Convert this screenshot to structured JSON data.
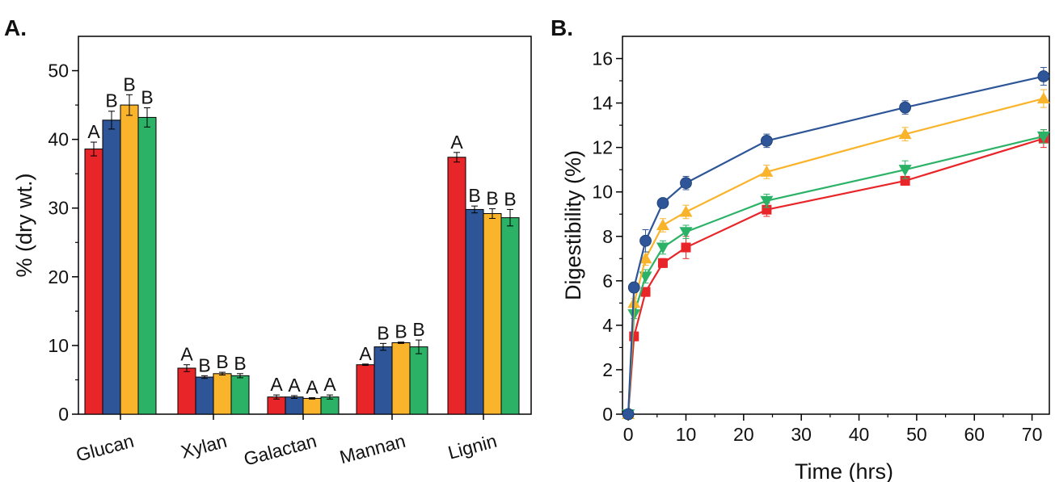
{
  "panels": {
    "a_label": "A.",
    "b_label": "B."
  },
  "colors": [
    "#e8262a",
    "#2d5597",
    "#f9b42c",
    "#2bb267"
  ],
  "chart_data": [
    {
      "type": "bar",
      "title": "",
      "ylabel": "% (dry wt.)",
      "xlabel": "",
      "ylim": [
        0,
        55
      ],
      "yticks": [
        0,
        10,
        20,
        30,
        40,
        50
      ],
      "categories": [
        "Glucan",
        "Xylan",
        "Galactan",
        "Mannan",
        "Lignin"
      ],
      "series": [
        {
          "color": "#e8262a",
          "values": [
            38.6,
            6.7,
            2.5,
            7.2,
            37.4
          ],
          "errors": [
            1.0,
            0.5,
            0.3,
            0.1,
            0.7
          ],
          "letters": [
            "A",
            "A",
            "A",
            "A",
            "A"
          ]
        },
        {
          "color": "#2d5597",
          "values": [
            42.8,
            5.4,
            2.5,
            9.8,
            29.8
          ],
          "errors": [
            1.3,
            0.2,
            0.2,
            0.5,
            0.5
          ],
          "letters": [
            "B",
            "B",
            "A",
            "B",
            "B"
          ]
        },
        {
          "color": "#f9b42c",
          "values": [
            45.0,
            5.9,
            2.3,
            10.4,
            29.2
          ],
          "errors": [
            1.5,
            0.2,
            0.1,
            0.1,
            0.7
          ],
          "letters": [
            "B",
            "B",
            "A",
            "B",
            "B"
          ]
        },
        {
          "color": "#2bb267",
          "values": [
            43.2,
            5.6,
            2.5,
            9.8,
            28.6
          ],
          "errors": [
            1.4,
            0.3,
            0.3,
            1.0,
            1.2
          ],
          "letters": [
            "B",
            "B",
            "A",
            "B",
            "B"
          ]
        }
      ],
      "grid": false,
      "legend": "none"
    },
    {
      "type": "line",
      "title": "",
      "xlabel": "Time (hrs)",
      "ylabel": "Digestibility (%)",
      "xlim": [
        -1,
        73
      ],
      "ylim": [
        0,
        17
      ],
      "xticks": [
        0,
        10,
        20,
        30,
        40,
        50,
        60,
        70
      ],
      "yticks": [
        0,
        2,
        4,
        6,
        8,
        10,
        12,
        14,
        16
      ],
      "series": [
        {
          "marker": "circle",
          "color": "#2d5597",
          "x": [
            0,
            1,
            3,
            6,
            10,
            24,
            48,
            72
          ],
          "y": [
            0,
            5.7,
            7.8,
            9.5,
            10.4,
            12.3,
            13.8,
            15.2
          ],
          "errors": [
            0,
            0.2,
            0.5,
            0.2,
            0.3,
            0.3,
            0.3,
            0.4
          ]
        },
        {
          "marker": "triangle-up",
          "color": "#f9b42c",
          "x": [
            0,
            1,
            3,
            6,
            10,
            24,
            48,
            72
          ],
          "y": [
            0,
            5.0,
            7.0,
            8.5,
            9.1,
            10.9,
            12.6,
            14.2
          ],
          "errors": [
            0,
            0.2,
            0.3,
            0.3,
            0.3,
            0.3,
            0.3,
            0.4
          ]
        },
        {
          "marker": "triangle-down",
          "color": "#2bb267",
          "x": [
            0,
            1,
            3,
            6,
            10,
            24,
            48,
            72
          ],
          "y": [
            0,
            4.5,
            6.2,
            7.5,
            8.2,
            9.6,
            11.0,
            12.5
          ],
          "errors": [
            0,
            0.2,
            0.3,
            0.3,
            0.3,
            0.3,
            0.4,
            0.3
          ]
        },
        {
          "marker": "square",
          "color": "#e8262a",
          "x": [
            0,
            1,
            3,
            6,
            10,
            24,
            48,
            72
          ],
          "y": [
            0,
            3.5,
            5.5,
            6.8,
            7.5,
            9.2,
            10.5,
            12.4
          ],
          "errors": [
            0,
            0.2,
            0.2,
            0.2,
            0.5,
            0.3,
            0.2,
            0.4
          ]
        }
      ],
      "grid": false,
      "legend": "none"
    }
  ]
}
